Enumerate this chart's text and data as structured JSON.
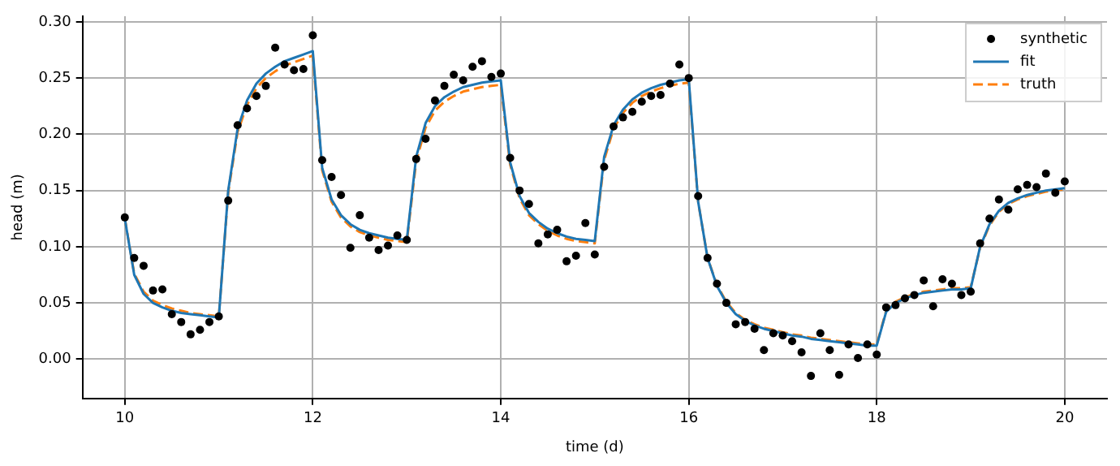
{
  "chart_data": {
    "type": "line",
    "xlabel": "time (d)",
    "ylabel": "head (m)",
    "x": [
      10.0,
      10.1,
      10.2,
      10.3,
      10.4,
      10.5,
      10.6,
      10.7,
      10.8,
      10.9,
      11.0,
      11.1,
      11.2,
      11.3,
      11.4,
      11.5,
      11.6,
      11.7,
      11.8,
      11.9,
      12.0,
      12.1,
      12.2,
      12.3,
      12.4,
      12.5,
      12.6,
      12.7,
      12.8,
      12.9,
      13.0,
      13.1,
      13.2,
      13.3,
      13.4,
      13.5,
      13.6,
      13.7,
      13.8,
      13.9,
      14.0,
      14.1,
      14.2,
      14.3,
      14.4,
      14.5,
      14.6,
      14.7,
      14.8,
      14.9,
      15.0,
      15.1,
      15.2,
      15.3,
      15.4,
      15.5,
      15.6,
      15.7,
      15.8,
      15.9,
      16.0,
      16.1,
      16.2,
      16.3,
      16.4,
      16.5,
      16.6,
      16.7,
      16.8,
      16.9,
      17.0,
      17.1,
      17.2,
      17.3,
      17.4,
      17.5,
      17.6,
      17.7,
      17.8,
      17.9,
      18.0,
      18.1,
      18.2,
      18.3,
      18.4,
      18.5,
      18.6,
      18.7,
      18.8,
      18.9,
      19.0,
      19.1,
      19.2,
      19.3,
      19.4,
      19.5,
      19.6,
      19.7,
      19.8,
      19.9,
      20.0
    ],
    "series": [
      {
        "name": "synthetic",
        "type": "scatter",
        "marker": "circle",
        "color": "#000000",
        "values": [
          0.126,
          0.09,
          0.083,
          0.061,
          0.062,
          0.04,
          0.033,
          0.022,
          0.026,
          0.033,
          0.038,
          0.141,
          0.208,
          0.223,
          0.234,
          0.243,
          0.277,
          0.262,
          0.257,
          0.258,
          0.288,
          0.177,
          0.162,
          0.146,
          0.099,
          0.128,
          0.108,
          0.097,
          0.101,
          0.11,
          0.106,
          0.178,
          0.196,
          0.23,
          0.243,
          0.253,
          0.248,
          0.26,
          0.265,
          0.251,
          0.254,
          0.179,
          0.15,
          0.138,
          0.103,
          0.111,
          0.115,
          0.087,
          0.092,
          0.121,
          0.093,
          0.171,
          0.207,
          0.215,
          0.22,
          0.229,
          0.234,
          0.235,
          0.245,
          0.262,
          0.25,
          0.145,
          0.09,
          0.067,
          0.05,
          0.031,
          0.033,
          0.027,
          0.008,
          0.023,
          0.021,
          0.016,
          0.006,
          -0.015,
          0.023,
          0.008,
          -0.014,
          0.013,
          0.001,
          0.013,
          0.004,
          0.046,
          0.048,
          0.054,
          0.057,
          0.07,
          0.047,
          0.071,
          0.067,
          0.057,
          0.06,
          0.103,
          0.125,
          0.142,
          0.133,
          0.151,
          0.155,
          0.153,
          0.165,
          0.148,
          0.158
        ]
      },
      {
        "name": "fit",
        "type": "line",
        "marker": "none",
        "line_style": "solid",
        "color": "#1f77b4",
        "values": [
          0.125,
          0.075,
          0.058,
          0.05,
          0.046,
          0.043,
          0.041,
          0.04,
          0.039,
          0.038,
          0.037,
          0.15,
          0.205,
          0.23,
          0.245,
          0.254,
          0.26,
          0.265,
          0.268,
          0.271,
          0.274,
          0.17,
          0.142,
          0.128,
          0.12,
          0.115,
          0.112,
          0.11,
          0.108,
          0.107,
          0.106,
          0.18,
          0.21,
          0.225,
          0.233,
          0.238,
          0.242,
          0.244,
          0.246,
          0.247,
          0.248,
          0.175,
          0.145,
          0.13,
          0.122,
          0.116,
          0.112,
          0.109,
          0.107,
          0.106,
          0.105,
          0.18,
          0.208,
          0.222,
          0.231,
          0.237,
          0.241,
          0.244,
          0.246,
          0.248,
          0.249,
          0.14,
          0.09,
          0.065,
          0.05,
          0.04,
          0.034,
          0.03,
          0.027,
          0.025,
          0.023,
          0.021,
          0.02,
          0.018,
          0.017,
          0.016,
          0.015,
          0.014,
          0.013,
          0.012,
          0.012,
          0.042,
          0.05,
          0.054,
          0.057,
          0.059,
          0.06,
          0.061,
          0.062,
          0.062,
          0.063,
          0.1,
          0.12,
          0.132,
          0.139,
          0.143,
          0.146,
          0.148,
          0.15,
          0.151,
          0.152
        ]
      },
      {
        "name": "truth",
        "type": "line",
        "marker": "none",
        "line_style": "dashed",
        "color": "#ff7f0e",
        "values": [
          0.125,
          0.076,
          0.06,
          0.052,
          0.048,
          0.045,
          0.043,
          0.041,
          0.04,
          0.039,
          0.038,
          0.148,
          0.202,
          0.226,
          0.241,
          0.25,
          0.256,
          0.261,
          0.264,
          0.267,
          0.27,
          0.168,
          0.14,
          0.126,
          0.118,
          0.113,
          0.11,
          0.108,
          0.106,
          0.105,
          0.104,
          0.176,
          0.206,
          0.221,
          0.229,
          0.234,
          0.238,
          0.24,
          0.242,
          0.243,
          0.244,
          0.173,
          0.143,
          0.128,
          0.12,
          0.114,
          0.11,
          0.107,
          0.105,
          0.104,
          0.103,
          0.177,
          0.205,
          0.219,
          0.228,
          0.234,
          0.238,
          0.241,
          0.243,
          0.245,
          0.246,
          0.14,
          0.09,
          0.066,
          0.051,
          0.041,
          0.035,
          0.031,
          0.028,
          0.026,
          0.024,
          0.022,
          0.021,
          0.019,
          0.018,
          0.017,
          0.016,
          0.015,
          0.014,
          0.013,
          0.013,
          0.043,
          0.051,
          0.055,
          0.058,
          0.06,
          0.061,
          0.062,
          0.063,
          0.063,
          0.064,
          0.099,
          0.119,
          0.131,
          0.138,
          0.142,
          0.145,
          0.147,
          0.149,
          0.15,
          0.151
        ]
      }
    ],
    "xlim": [
      9.55,
      20.45
    ],
    "xticks": [
      10,
      12,
      14,
      16,
      18,
      20
    ],
    "ylim": [
      -0.035,
      0.305
    ],
    "yticks": [
      {
        "value": 0,
        "label": "0.00"
      },
      {
        "value": 0.05,
        "label": "0.05"
      },
      {
        "value": 0.1,
        "label": "0.10"
      },
      {
        "value": 0.15,
        "label": "0.15"
      },
      {
        "value": 0.2,
        "label": "0.20"
      },
      {
        "value": 0.25,
        "label": "0.25"
      },
      {
        "value": 0.3,
        "label": "0.30"
      }
    ],
    "grid": true,
    "legend": "top right"
  }
}
